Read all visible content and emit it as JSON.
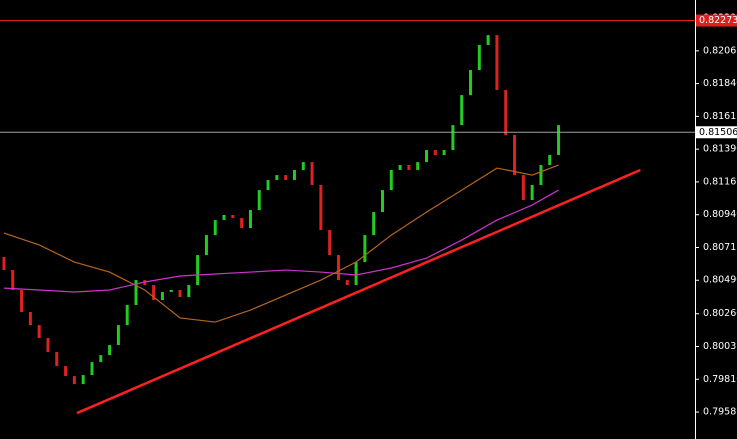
{
  "chart_data": {
    "type": "bar",
    "ylim": [
      0.794,
      0.82414
    ],
    "xlim": [
      -0.45,
      78.5
    ],
    "yticks": [
      {
        "value": 0.8229,
        "label": "0.82290"
      },
      0.82065,
      {
        "value": 0.8184,
        "label": "0.81840"
      },
      0.81615,
      {
        "value": 0.8139,
        "label": "0.81390"
      },
      0.81165,
      {
        "value": 0.8094,
        "label": "0.80940"
      },
      0.80715,
      {
        "value": 0.8049,
        "label": "0.80490"
      },
      {
        "value": 0.8026,
        "label": "0.80260"
      },
      0.80035,
      {
        "value": 0.7981,
        "label": "0.79810"
      },
      0.79585
    ],
    "up_color": "#22cc22",
    "down_color": "#dd2222",
    "open": [
      0.8065,
      0.8056,
      0.80423,
      0.80272,
      0.80182,
      0.80093,
      0.79997,
      0.79901,
      0.79832,
      0.79777,
      0.79839,
      0.79928,
      0.79976,
      0.80045,
      0.80182,
      0.8032,
      0.80491,
      0.80457,
      0.80354,
      0.80409,
      0.80423,
      0.80375,
      0.80457,
      0.80663,
      0.808,
      0.80903,
      0.80938,
      0.80917,
      0.80848,
      0.80972,
      0.81109,
      0.81178,
      0.81212,
      0.81178,
      0.81247,
      0.81301,
      0.81144,
      0.80835,
      0.80663,
      0.80491,
      0.80457,
      0.80615,
      0.808,
      0.80958,
      0.81109,
      0.81247,
      0.81281,
      0.81247,
      0.81301,
      0.81384,
      0.8135,
      0.81384,
      0.81555,
      0.81761,
      0.81933,
      0.82105,
      0.82173,
      0.81796,
      0.81487,
      0.81212,
      0.81041,
      0.81144,
      0.81281,
      0.8135
    ],
    "close": [
      0.8056,
      0.80423,
      0.80272,
      0.80182,
      0.80093,
      0.79997,
      0.79901,
      0.79832,
      0.79777,
      0.79839,
      0.79928,
      0.79976,
      0.80045,
      0.80182,
      0.8032,
      0.80491,
      0.80457,
      0.80354,
      0.80409,
      0.80423,
      0.80375,
      0.80457,
      0.80663,
      0.808,
      0.80903,
      0.80938,
      0.80917,
      0.80848,
      0.80972,
      0.81109,
      0.81178,
      0.81212,
      0.81178,
      0.81247,
      0.81301,
      0.81144,
      0.80835,
      0.80663,
      0.80491,
      0.80457,
      0.80615,
      0.808,
      0.80958,
      0.81109,
      0.81247,
      0.81281,
      0.81247,
      0.81301,
      0.81384,
      0.8135,
      0.81384,
      0.81555,
      0.81761,
      0.81933,
      0.82105,
      0.82173,
      0.81796,
      0.81487,
      0.81212,
      0.81041,
      0.81144,
      0.81281,
      0.8135,
      0.81555
    ],
    "series": [
      {
        "color": "#cc33cc",
        "x": [
          0,
          4,
          8,
          12,
          16,
          20,
          24,
          28,
          32,
          36,
          40,
          44,
          48,
          52,
          56,
          60,
          63
        ],
        "values": [
          0.80436,
          0.80423,
          0.80409,
          0.80423,
          0.80478,
          0.80519,
          0.80533,
          0.80546,
          0.8056,
          0.80546,
          0.80526,
          0.80574,
          0.80642,
          0.80766,
          0.80903,
          0.81006,
          0.81109
        ]
      },
      {
        "color": "#b5651d",
        "x": [
          0,
          4,
          8,
          12,
          16,
          20,
          24,
          28,
          32,
          36,
          40,
          44,
          48,
          52,
          56,
          60,
          63
        ],
        "values": [
          0.80814,
          0.80732,
          0.80615,
          0.80546,
          0.80423,
          0.80231,
          0.80203,
          0.80285,
          0.80388,
          0.80491,
          0.80615,
          0.808,
          0.80958,
          0.81109,
          0.8126,
          0.81212,
          0.81281
        ]
      }
    ],
    "trendline": {
      "color": "#ff2020",
      "x": [
        8.3,
        72.3
      ],
      "values": [
        0.79578,
        0.81247
      ]
    },
    "levels": [
      {
        "value": 0.82273,
        "color": "#e02020",
        "label_bg": "#e02020",
        "label_color": "#ffffff"
      },
      {
        "value": 0.81506,
        "color": "#a0a0a0",
        "label_bg": "#ffffff",
        "label_color": "#000000"
      }
    ]
  }
}
